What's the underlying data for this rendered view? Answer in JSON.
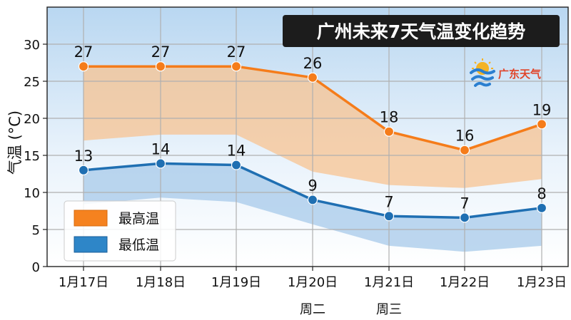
{
  "chart_data": {
    "type": "line",
    "title": "广州未来7天气温变化趋势",
    "ylabel": "气温 (°C)",
    "xlabel": "",
    "categories": [
      "1月17日",
      "1月18日",
      "1月19日",
      "1月20日",
      "1月21日",
      "1月22日",
      "1月23日"
    ],
    "sub_labels": [
      "",
      "",
      "",
      "周二",
      "周三",
      "",
      ""
    ],
    "ylim": [
      0,
      35
    ],
    "yticks": [
      0,
      5,
      10,
      15,
      20,
      25,
      30
    ],
    "grid": true,
    "legend_position": "bottom-left",
    "series": [
      {
        "name": "最高温",
        "values": [
          27,
          27,
          27,
          25.5,
          18.2,
          15.7,
          19.2
        ],
        "labels": [
          "27",
          "27",
          "27",
          "26",
          "18",
          "16",
          "19"
        ],
        "color": "#f57c1a",
        "band_low": [
          17,
          17.8,
          17.8,
          12.8,
          11,
          10.6,
          11.8
        ],
        "band_color": "#f9c08a"
      },
      {
        "name": "最低温",
        "values": [
          13,
          13.9,
          13.7,
          9,
          6.8,
          6.6,
          7.9
        ],
        "labels": [
          "13",
          "14",
          "14",
          "9",
          "7",
          "7",
          "8"
        ],
        "color": "#1f6fb2",
        "band_low": [
          8.4,
          9.3,
          8.7,
          5.7,
          2.8,
          2,
          2.8
        ],
        "band_color": "#a7c9ea"
      }
    ]
  },
  "logo": {
    "text": "广东天气",
    "icon": "sun-swirl-weather-icon"
  },
  "colors": {
    "title_bg": "#1c1c1c",
    "grid": "#b0b0b0",
    "sky_top": "#bcd9f2"
  }
}
